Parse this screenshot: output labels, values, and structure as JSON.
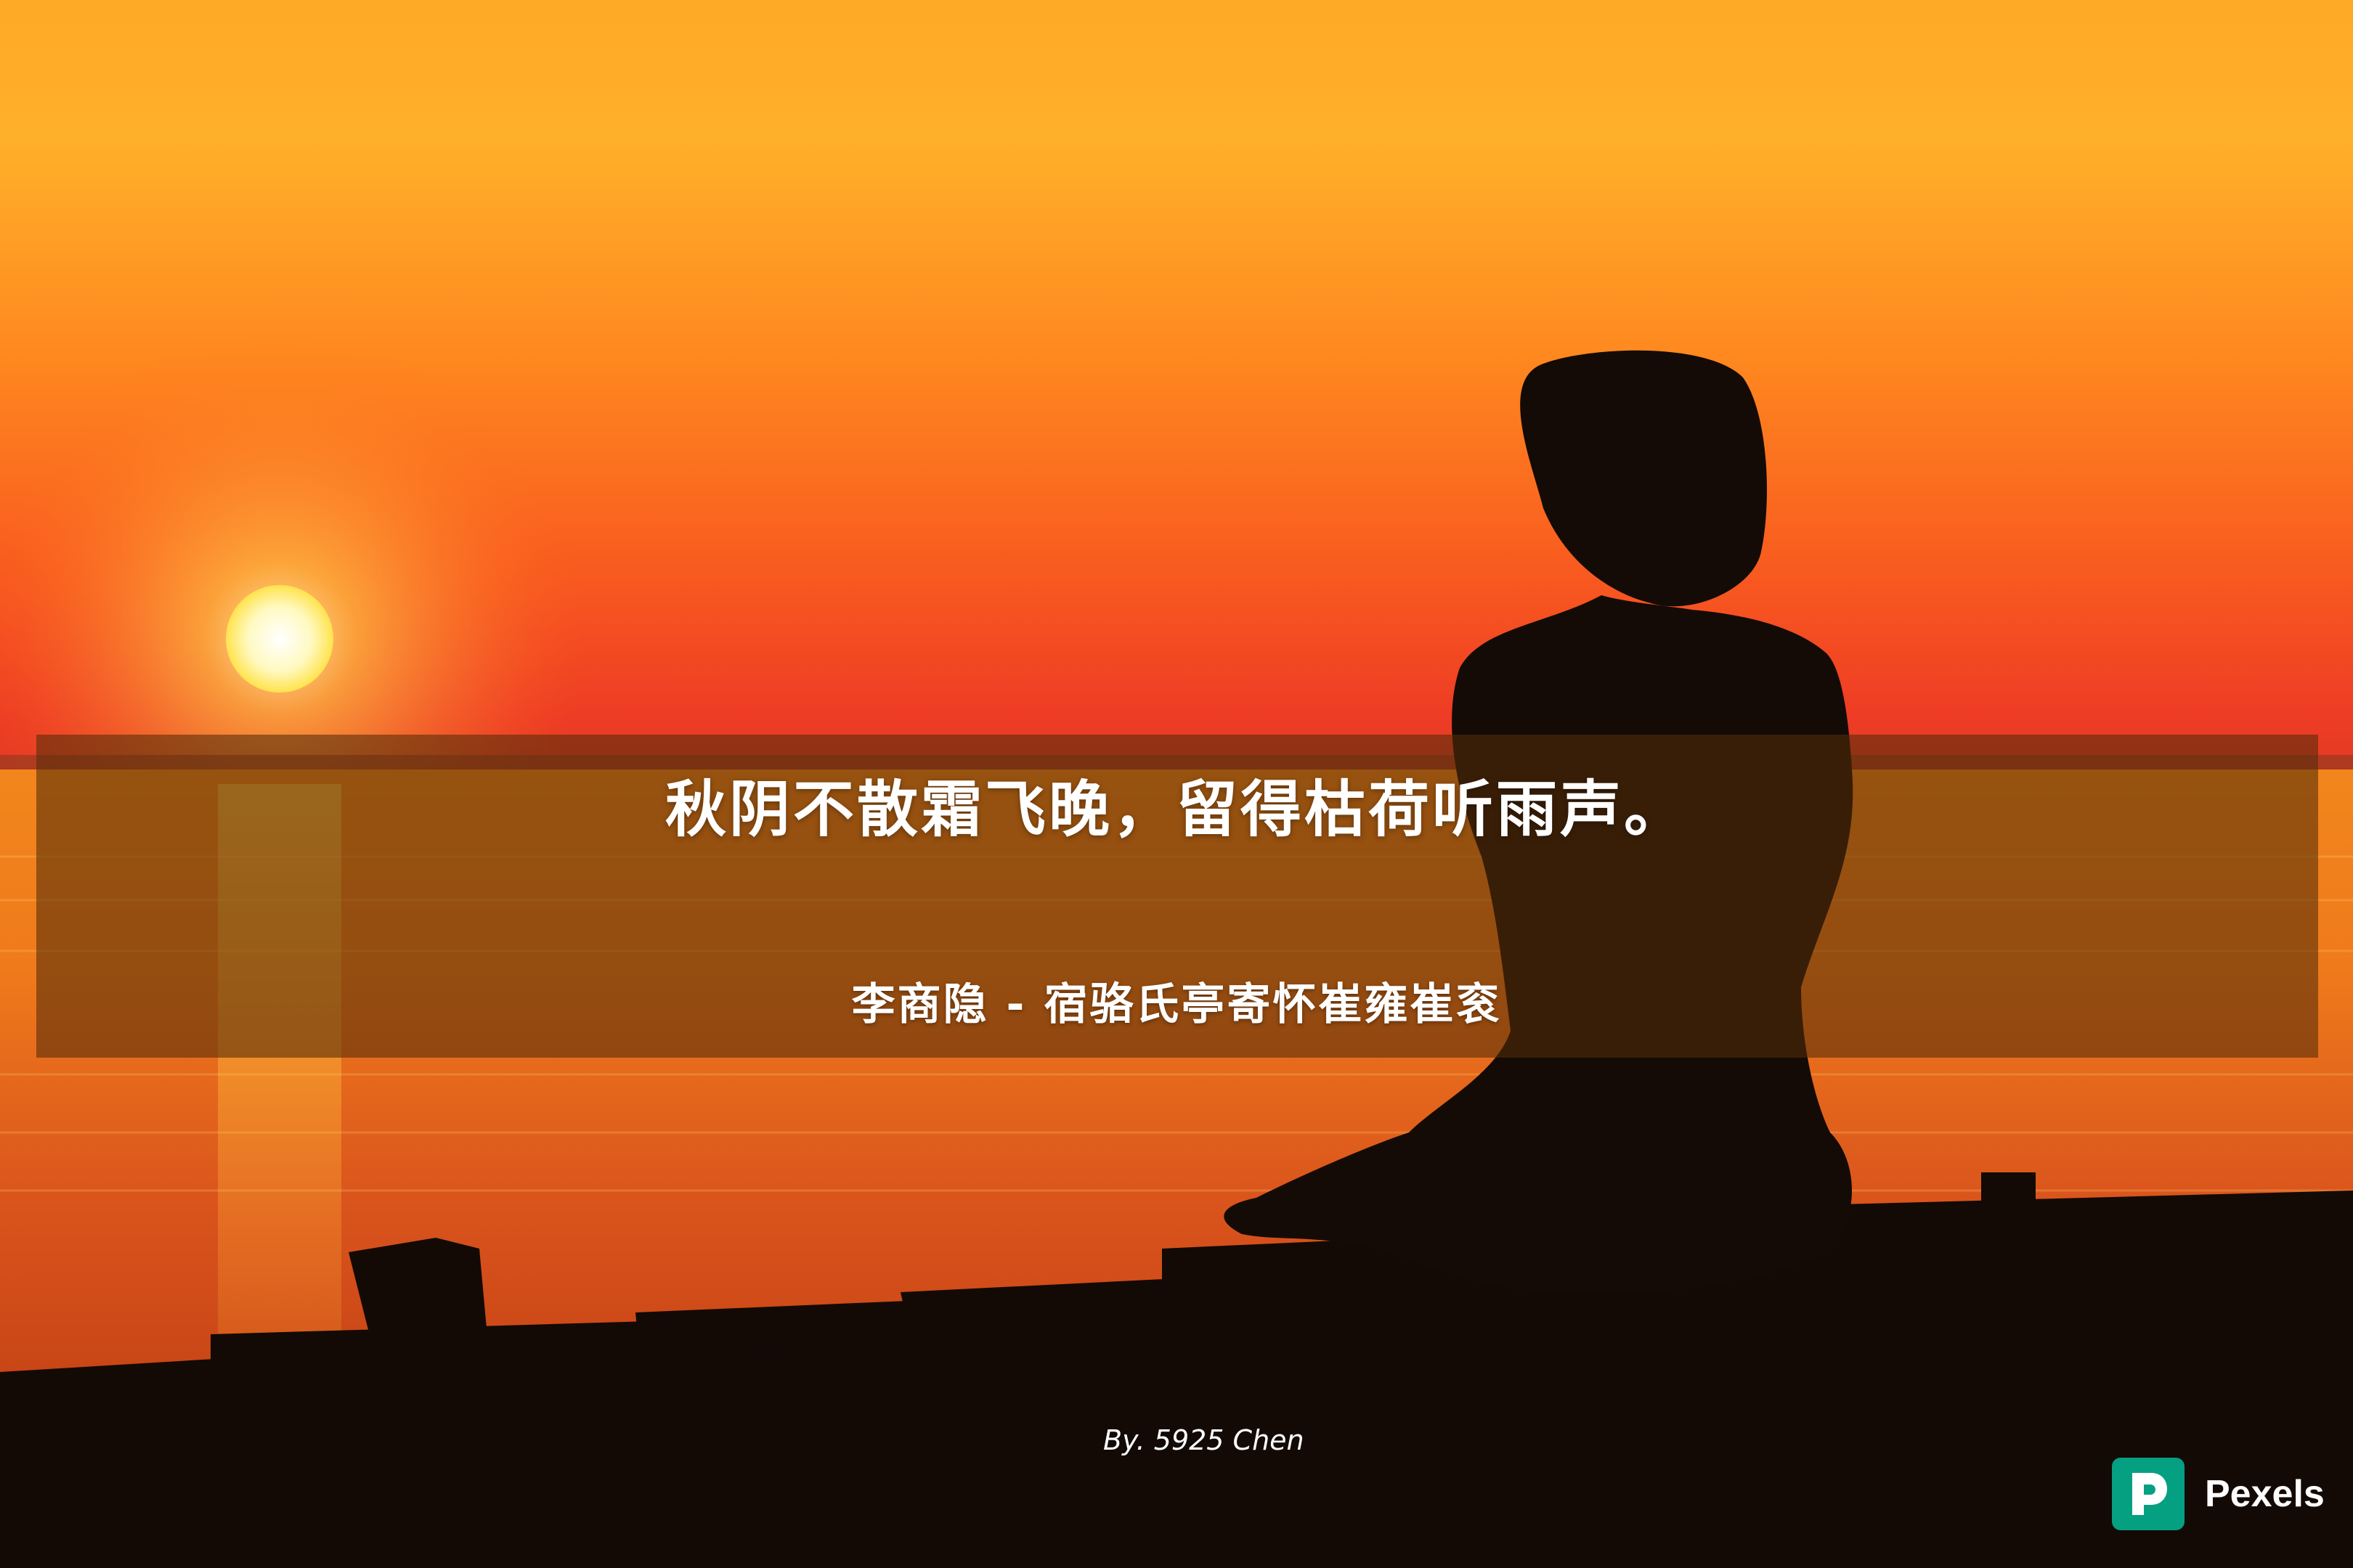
{
  "poem": {
    "verse": "秋阴不散霜飞晚，留得枯荷听雨声。",
    "source": "李商隐 - 宿骆氏亭寄怀崔雍崔衮"
  },
  "credit": "By. 5925 Chen",
  "watermark": {
    "brand": "Pexels",
    "icon": "pexels-logo-icon",
    "color": "#05a081"
  },
  "colors": {
    "sky_top": "#ffae2b",
    "sky_horizon": "#f2482a",
    "sun": "#fffbd2",
    "silhouette": "#130a06",
    "overlay": "#552d08"
  }
}
